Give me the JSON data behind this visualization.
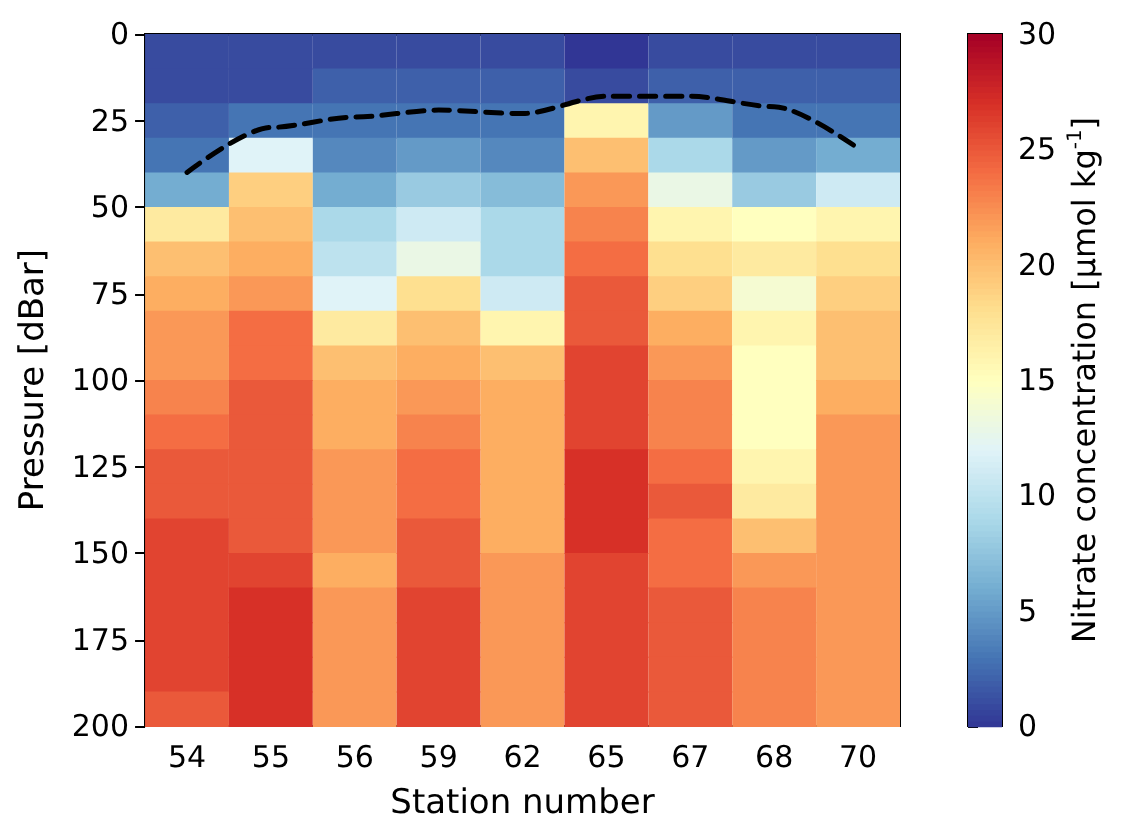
{
  "chart_data": {
    "type": "heatmap",
    "xlabel": "Station number",
    "ylabel": "Pressure [dBar]",
    "clabel": "Nitrate concentration [μmol kg$^{-1}$]",
    "categories": [
      "54",
      "55",
      "56",
      "59",
      "62",
      "65",
      "67",
      "68",
      "70"
    ],
    "ylim": [
      200,
      0
    ],
    "yticks": [
      0,
      25,
      50,
      75,
      100,
      125,
      150,
      175,
      200
    ],
    "clim": [
      0,
      30
    ],
    "cticks": [
      0,
      5,
      10,
      15,
      20,
      25,
      30
    ],
    "cells": [
      [
        1,
        1,
        1,
        1,
        1,
        0,
        1,
        1,
        1
      ],
      [
        1,
        1,
        2,
        2,
        2,
        1,
        2,
        2,
        2
      ],
      [
        2,
        3,
        3,
        3,
        3,
        16,
        5,
        3,
        3
      ],
      [
        3,
        12,
        4,
        5,
        4,
        20,
        9,
        5,
        6
      ],
      [
        6,
        19,
        6,
        8,
        7,
        22,
        13,
        8,
        11
      ],
      [
        17,
        20,
        9,
        11,
        9,
        23,
        16,
        15,
        16
      ],
      [
        20,
        21,
        10,
        13,
        9,
        24,
        18,
        17,
        18
      ],
      [
        21,
        22,
        12,
        18,
        11,
        25,
        19,
        14,
        19
      ],
      [
        22,
        24,
        17,
        20,
        16,
        25,
        21,
        16,
        20
      ],
      [
        22,
        24,
        20,
        21,
        20,
        26,
        22,
        15,
        20
      ],
      [
        23,
        25,
        21,
        22,
        21,
        26,
        23,
        15,
        21
      ],
      [
        24,
        25,
        21,
        23,
        21,
        26,
        23,
        15,
        22
      ],
      [
        25,
        25,
        22,
        24,
        21,
        27,
        24,
        16,
        22
      ],
      [
        25,
        25,
        22,
        24,
        21,
        27,
        25,
        17,
        22
      ],
      [
        26,
        25,
        22,
        25,
        21,
        27,
        24,
        20,
        22
      ],
      [
        26,
        26,
        21,
        25,
        22,
        26,
        24,
        22,
        22
      ],
      [
        26,
        27,
        22,
        26,
        22,
        26,
        25,
        23,
        22
      ],
      [
        26,
        27,
        22,
        26,
        22,
        26,
        25,
        23,
        22
      ],
      [
        26,
        27,
        22,
        26,
        22,
        26,
        25,
        23,
        22
      ],
      [
        25,
        27,
        22,
        26,
        22,
        26,
        25,
        23,
        22
      ]
    ],
    "series": [
      {
        "type": "line",
        "color": "#000000",
        "line_style": "dashed",
        "marker": "none",
        "values": [
          40,
          27,
          24,
          22,
          23,
          18,
          18,
          21,
          33
        ]
      }
    ]
  }
}
